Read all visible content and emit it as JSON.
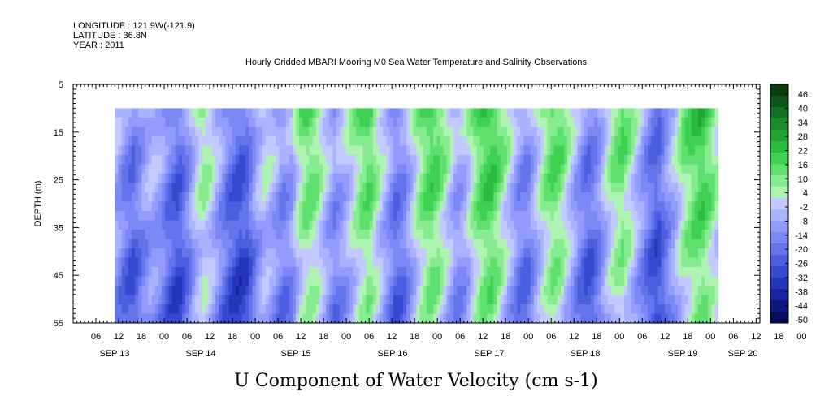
{
  "header": {
    "longitude": "LONGITUDE : 121.9W(-121.9)",
    "latitude": "LATITUDE : 36.8N",
    "year": "YEAR : 2011"
  },
  "chart_data": {
    "type": "heatmap",
    "title": "Hourly Gridded MBARI Mooring M0 Sea Water Temperature and Salinity Observations",
    "xlabel": "U Component of Water Velocity (cm s-1)",
    "ylabel": "DEPTH (m)",
    "ylim": [
      55,
      5
    ],
    "y_ticks": [
      "5",
      "15",
      "25",
      "35",
      "45",
      "55"
    ],
    "x_hour_ticks": [
      "06",
      "12",
      "18",
      "00",
      "06",
      "12",
      "18",
      "00",
      "06",
      "12",
      "18",
      "00",
      "06",
      "12",
      "18",
      "00",
      "06",
      "12",
      "18",
      "00",
      "06",
      "12",
      "18",
      "00",
      "06",
      "12",
      "18",
      "00",
      "06",
      "12",
      "18",
      "00"
    ],
    "x_day_labels": [
      "SEP 13",
      "SEP 14",
      "SEP 15",
      "SEP 16",
      "SEP 17",
      "SEP 18",
      "SEP 19",
      "SEP 20"
    ],
    "data_depth_range": [
      10,
      55
    ],
    "data_time_start_hour": 11,
    "data_time_end_hour": 170,
    "time_origin_hour_label": "00 SEP 13",
    "colorbar_labels": [
      "46",
      "40",
      "34",
      "28",
      "22",
      "16",
      "10",
      "4",
      "-2",
      "-8",
      "-14",
      "-20",
      "-26",
      "-32",
      "-38",
      "-44",
      "-50"
    ],
    "colorbar_colors": [
      "#0b3d0b",
      "#10561a",
      "#147023",
      "#1a8a2c",
      "#22a336",
      "#2bbd42",
      "#3ed154",
      "#5fe06e",
      "#86ec8f",
      "#aef3b2",
      "#c3caff",
      "#aab3ff",
      "#929cff",
      "#7b88f5",
      "#6474eb",
      "#4c5fe0",
      "#3649d1",
      "#2535bd",
      "#1725a3",
      "#0c1780",
      "#050c5c"
    ],
    "column_profile": [
      -10,
      -18,
      -22,
      -14,
      -8,
      -12,
      -20,
      -26,
      -18,
      -6,
      2,
      -4,
      -14,
      -22,
      -28,
      -24,
      -12,
      -4,
      -8,
      -16,
      -12,
      2,
      8,
      4,
      -6,
      -14,
      -10,
      -2,
      6,
      10,
      0,
      -10,
      -20,
      -16,
      -4,
      6,
      12,
      8,
      -2,
      -12,
      -8,
      4,
      12,
      14,
      6,
      -4,
      -14,
      -18,
      -8,
      2,
      10,
      6,
      -4,
      -14,
      -22,
      -18,
      -6,
      4,
      8,
      0,
      -10,
      -20,
      -26,
      -16,
      -6,
      4,
      10,
      14,
      8,
      -2
    ],
    "profile_start_hour": 11,
    "profile_step_hours": 2.3
  }
}
